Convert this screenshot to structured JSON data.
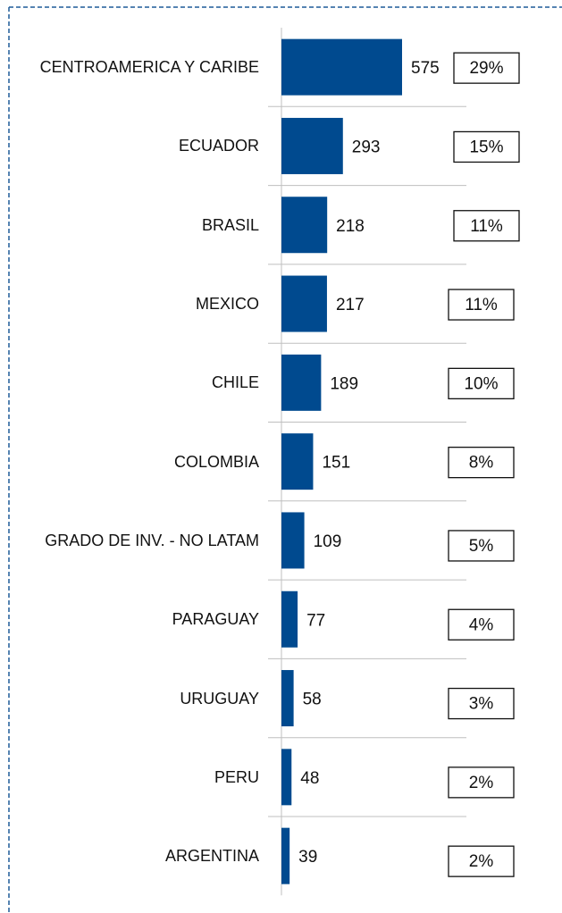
{
  "chart_data": {
    "type": "bar",
    "orientation": "horizontal",
    "color": "#004a8f",
    "categories": [
      "CENTROAMERICA Y CARIBE",
      "ECUADOR",
      "BRASIL",
      "MEXICO",
      "CHILE",
      "COLOMBIA",
      "GRADO DE INV. - NO LATAM",
      "PARAGUAY",
      "URUGUAY",
      "PERU",
      "ARGENTINA"
    ],
    "values": [
      575,
      293,
      218,
      217,
      189,
      151,
      109,
      77,
      58,
      48,
      39
    ],
    "shares": [
      29,
      15,
      11,
      11,
      10,
      8,
      5,
      4,
      3,
      2,
      2
    ],
    "share_labels": [
      "29%",
      "15%",
      "11%",
      "11%",
      "10%",
      "8%",
      "5%",
      "4%",
      "3%",
      "2%",
      "2%"
    ]
  }
}
